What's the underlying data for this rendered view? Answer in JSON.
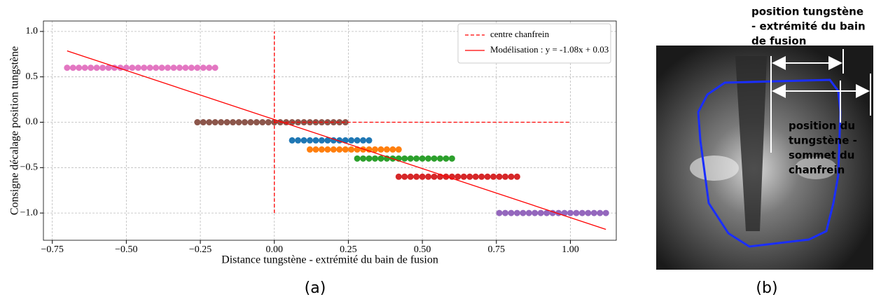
{
  "chart_data": {
    "type": "scatter",
    "xlabel": "Distance tungstène - extrémité du bain de fusion",
    "ylabel": "Consigne décalage position tungstène",
    "xlim": [
      -0.78,
      1.155
    ],
    "ylim": [
      -1.3,
      1.115
    ],
    "xticks": [
      {
        "value": -0.75,
        "label": "−0.75"
      },
      {
        "value": -0.5,
        "label": "−0.50"
      },
      {
        "value": -0.25,
        "label": "−0.25"
      },
      {
        "value": 0,
        "label": "0.00"
      },
      {
        "value": 0.25,
        "label": "0.25"
      },
      {
        "value": 0.5,
        "label": "0.50"
      },
      {
        "value": 0.75,
        "label": "0.75"
      },
      {
        "value": 1,
        "label": "1.00"
      }
    ],
    "yticks": [
      {
        "value": -1,
        "label": "−1.0"
      },
      {
        "value": -0.5,
        "label": "−0.5"
      },
      {
        "value": 0,
        "label": "0.0"
      },
      {
        "value": 0.5,
        "label": "0.5"
      },
      {
        "value": 1,
        "label": "1.0"
      }
    ],
    "grid": true,
    "legend": "upper right",
    "series": [
      {
        "mode": "markers",
        "color": "#e377c2",
        "x": [
          -0.7,
          -0.68,
          -0.66,
          -0.64,
          -0.62,
          -0.6,
          -0.58,
          -0.56,
          -0.54,
          -0.52,
          -0.5,
          -0.48,
          -0.46,
          -0.44,
          -0.42,
          -0.4,
          -0.38,
          -0.36,
          -0.34,
          -0.32,
          -0.3,
          -0.28,
          -0.26,
          -0.24,
          -0.22,
          -0.2
        ],
        "y": [
          0.6,
          0.6,
          0.6,
          0.6,
          0.6,
          0.6,
          0.6,
          0.6,
          0.6,
          0.6,
          0.6,
          0.6,
          0.6,
          0.6,
          0.6,
          0.6,
          0.6,
          0.6,
          0.6,
          0.6,
          0.6,
          0.6,
          0.6,
          0.6,
          0.6,
          0.6
        ]
      },
      {
        "mode": "markers",
        "color": "#8c564b",
        "x": [
          -0.26,
          -0.24,
          -0.22,
          -0.2,
          -0.18,
          -0.16,
          -0.14,
          -0.12,
          -0.1,
          -0.08,
          -0.06,
          -0.04,
          -0.02,
          0,
          0.02,
          0.04,
          0.06,
          0.08,
          0.1,
          0.12,
          0.14,
          0.16,
          0.18,
          0.2,
          0.22,
          0.24
        ],
        "y": [
          0,
          0,
          0,
          0,
          0,
          0,
          0,
          0,
          0,
          0,
          0,
          0,
          0,
          0,
          0,
          0,
          0,
          0,
          0,
          0,
          0,
          0,
          0,
          0,
          0,
          0
        ]
      },
      {
        "mode": "markers",
        "color": "#1f77b4",
        "x": [
          0.06,
          0.08,
          0.1,
          0.12,
          0.14,
          0.16,
          0.18,
          0.2,
          0.22,
          0.24,
          0.26,
          0.28,
          0.3,
          0.32
        ],
        "y": [
          -0.2,
          -0.2,
          -0.2,
          -0.2,
          -0.2,
          -0.2,
          -0.2,
          -0.2,
          -0.2,
          -0.2,
          -0.2,
          -0.2,
          -0.2,
          -0.2
        ]
      },
      {
        "mode": "markers",
        "color": "#ff7f0e",
        "x": [
          0.12,
          0.14,
          0.16,
          0.18,
          0.2,
          0.22,
          0.24,
          0.26,
          0.28,
          0.3,
          0.32,
          0.34,
          0.36,
          0.38,
          0.4,
          0.42
        ],
        "y": [
          -0.3,
          -0.3,
          -0.3,
          -0.3,
          -0.3,
          -0.3,
          -0.3,
          -0.3,
          -0.3,
          -0.3,
          -0.3,
          -0.3,
          -0.3,
          -0.3,
          -0.3,
          -0.3
        ]
      },
      {
        "mode": "markers",
        "color": "#2ca02c",
        "x": [
          0.28,
          0.3,
          0.32,
          0.34,
          0.36,
          0.38,
          0.4,
          0.42,
          0.44,
          0.46,
          0.48,
          0.5,
          0.52,
          0.54,
          0.56,
          0.58,
          0.6
        ],
        "y": [
          -0.4,
          -0.4,
          -0.4,
          -0.4,
          -0.4,
          -0.4,
          -0.4,
          -0.4,
          -0.4,
          -0.4,
          -0.4,
          -0.4,
          -0.4,
          -0.4,
          -0.4,
          -0.4,
          -0.4
        ]
      },
      {
        "mode": "markers",
        "color": "#d62728",
        "x": [
          0.42,
          0.44,
          0.46,
          0.48,
          0.5,
          0.52,
          0.54,
          0.56,
          0.58,
          0.6,
          0.62,
          0.64,
          0.66,
          0.68,
          0.7,
          0.72,
          0.74,
          0.76,
          0.78,
          0.8,
          0.82
        ],
        "y": [
          -0.6,
          -0.6,
          -0.6,
          -0.6,
          -0.6,
          -0.6,
          -0.6,
          -0.6,
          -0.6,
          -0.6,
          -0.6,
          -0.6,
          -0.6,
          -0.6,
          -0.6,
          -0.6,
          -0.6,
          -0.6,
          -0.6,
          -0.6,
          -0.6
        ]
      },
      {
        "mode": "markers",
        "color": "#9467bd",
        "x": [
          0.76,
          0.78,
          0.8,
          0.82,
          0.84,
          0.86,
          0.88,
          0.9,
          0.92,
          0.94,
          0.96,
          0.98,
          1,
          1.02,
          1.04,
          1.06,
          1.08,
          1.1,
          1.12
        ],
        "y": [
          -1,
          -1,
          -1,
          -1,
          -1,
          -1,
          -1,
          -1,
          -1,
          -1,
          -1,
          -1,
          -1,
          -1,
          -1,
          -1,
          -1,
          -1,
          -1
        ]
      },
      {
        "mode": "lines",
        "dashed": true,
        "name": "centre chanfrein",
        "color": "#ff0000",
        "x": [
          0,
          0,
          null,
          0,
          1
        ],
        "y": [
          -1,
          1,
          null,
          0,
          0
        ]
      },
      {
        "mode": "lines",
        "dashed": false,
        "name": "Modélisation : y = -1.08x + 0.03",
        "color": "#ff0000",
        "x": [
          -0.7,
          1.12
        ],
        "y": [
          0.786,
          -1.18
        ]
      }
    ]
  },
  "captions": [
    "(a)",
    "(b)"
  ],
  "image_panel": {
    "top_label": [
      "position tungstène",
      "- extrémité du bain",
      "de fusion"
    ],
    "side_label": [
      "position du",
      "tungstène -",
      "sommet du",
      "chanfrein"
    ]
  }
}
